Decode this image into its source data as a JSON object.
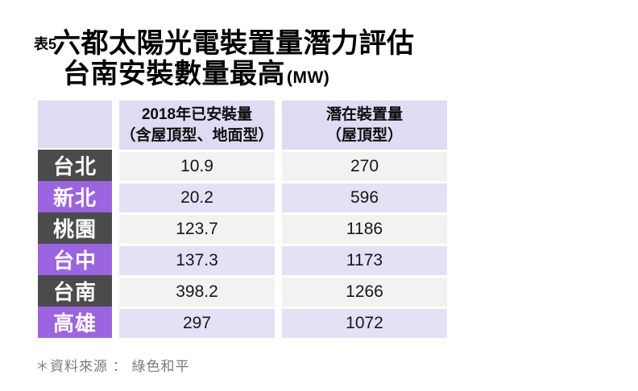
{
  "title": {
    "tag": "表5",
    "line1": "六都太陽光電裝置量潛力評估",
    "line2": "台南安裝數量最高",
    "unit": "(MW)"
  },
  "table": {
    "columns": [
      {
        "label": "2018年已安裝量",
        "sublabel": "（含屋頂型、地面型）"
      },
      {
        "label": "潛在裝置量",
        "sublabel": "（屋頂型）"
      }
    ],
    "rows": [
      {
        "city": "台北",
        "installed_2018": "10.9",
        "potential": "270",
        "variant": "dark"
      },
      {
        "city": "新北",
        "installed_2018": "20.2",
        "potential": "596",
        "variant": "purple"
      },
      {
        "city": "桃園",
        "installed_2018": "123.7",
        "potential": "1186",
        "variant": "dark"
      },
      {
        "city": "台中",
        "installed_2018": "137.3",
        "potential": "1173",
        "variant": "purple"
      },
      {
        "city": "台南",
        "installed_2018": "398.2",
        "potential": "1266",
        "variant": "dark"
      },
      {
        "city": "高雄",
        "installed_2018": "297",
        "potential": "1072",
        "variant": "purple"
      }
    ]
  },
  "footer": {
    "source": "＊資料來源 ： 綠色和平"
  },
  "colors": {
    "purple_label": "#9b64e0",
    "dark_label": "#4b4b4b",
    "header_lavender": "#dedcf2",
    "row_lavender": "#e4e1f6",
    "row_light": "#f3f2f0",
    "footer_gray": "#7b7b7b"
  },
  "chart_data": {
    "type": "table",
    "title": "六都太陽光電裝置量潛力評估",
    "subtitle": "台南安裝數量最高",
    "unit": "MW",
    "categories": [
      "台北",
      "新北",
      "桃園",
      "台中",
      "台南",
      "高雄"
    ],
    "series": [
      {
        "name": "2018年已安裝量（含屋頂型、地面型）",
        "values": [
          10.9,
          20.2,
          123.7,
          137.3,
          398.2,
          297
        ]
      },
      {
        "name": "潛在裝置量（屋頂型）",
        "values": [
          270,
          596,
          1186,
          1173,
          1266,
          1072
        ]
      }
    ],
    "source": "綠色和平"
  }
}
